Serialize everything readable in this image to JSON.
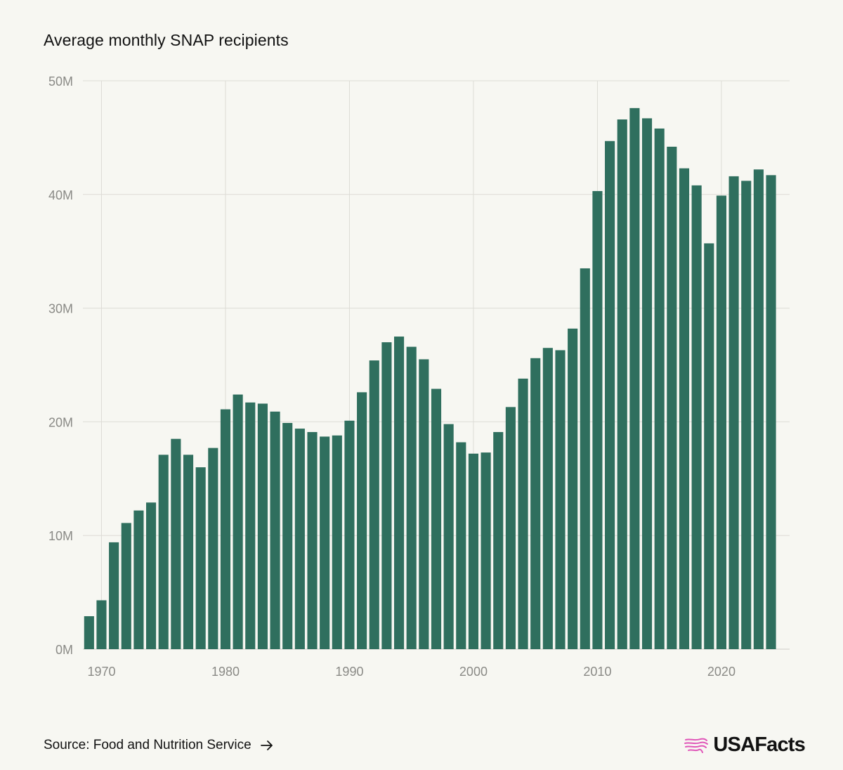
{
  "title": "Average monthly SNAP recipients",
  "source_label": "Source: Food and Nutrition Service",
  "brand": "USAFacts",
  "colors": {
    "bar": "#2f6f5e",
    "grid": "#dddcd6",
    "background": "#f7f7f2",
    "logo": "#e055b8"
  },
  "icons": {
    "source_link": "arrow-right-icon",
    "logo": "usa-map-stripes-icon"
  },
  "chart_data": {
    "type": "bar",
    "ylim": [
      0,
      50
    ],
    "y_ticks": [
      0,
      10,
      20,
      30,
      40,
      50
    ],
    "y_tick_labels": [
      "0M",
      "10M",
      "20M",
      "30M",
      "40M",
      "50M"
    ],
    "x_ticks": [
      1970,
      1980,
      1990,
      2000,
      2010,
      2020
    ],
    "x_tick_labels": [
      "1970",
      "1980",
      "1990",
      "2000",
      "2010",
      "2020"
    ],
    "grid": true,
    "unit": "millions",
    "categories": [
      1969,
      1970,
      1971,
      1972,
      1973,
      1974,
      1975,
      1976,
      1977,
      1978,
      1979,
      1980,
      1981,
      1982,
      1983,
      1984,
      1985,
      1986,
      1987,
      1988,
      1989,
      1990,
      1991,
      1992,
      1993,
      1994,
      1995,
      1996,
      1997,
      1998,
      1999,
      2000,
      2001,
      2002,
      2003,
      2004,
      2005,
      2006,
      2007,
      2008,
      2009,
      2010,
      2011,
      2012,
      2013,
      2014,
      2015,
      2016,
      2017,
      2018,
      2019,
      2020,
      2021,
      2022,
      2023,
      2024
    ],
    "values": [
      2.9,
      4.3,
      9.4,
      11.1,
      12.2,
      12.9,
      17.1,
      18.5,
      17.1,
      16.0,
      17.7,
      21.1,
      22.4,
      21.7,
      21.6,
      20.9,
      19.9,
      19.4,
      19.1,
      18.7,
      18.8,
      20.1,
      22.6,
      25.4,
      27.0,
      27.5,
      26.6,
      25.5,
      22.9,
      19.8,
      18.2,
      17.2,
      17.3,
      19.1,
      21.3,
      23.8,
      25.6,
      26.5,
      26.3,
      28.2,
      33.5,
      40.3,
      44.7,
      46.6,
      47.6,
      46.7,
      45.8,
      44.2,
      42.3,
      40.8,
      35.7,
      39.9,
      41.6,
      41.2,
      42.2,
      41.7
    ]
  }
}
